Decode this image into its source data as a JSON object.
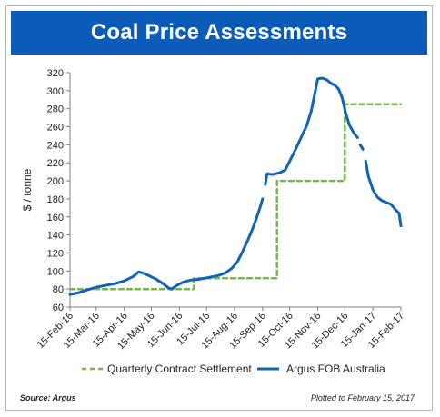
{
  "chart_data": {
    "type": "line",
    "title": "Coal Price Assessments",
    "ylabel": "$ / tonne",
    "ylim": [
      60,
      320
    ],
    "yticks": [
      60,
      80,
      100,
      120,
      140,
      160,
      180,
      200,
      220,
      240,
      260,
      280,
      300,
      320
    ],
    "xlim": [
      "2016-02-15",
      "2017-02-15"
    ],
    "xtick_labels": [
      "15-Feb-16",
      "15-Mar-16",
      "15-Apr-16",
      "15-May-16",
      "15-Jun-16",
      "15-Jul-16",
      "15-Aug-16",
      "15-Sep-16",
      "15-Oct-16",
      "15-Nov-16",
      "15-Dec-16",
      "15-Jan-17",
      "15-Feb-17"
    ],
    "xtick_dates": [
      "2016-02-15",
      "2016-03-15",
      "2016-04-15",
      "2016-05-15",
      "2016-06-15",
      "2016-07-15",
      "2016-08-15",
      "2016-09-15",
      "2016-10-15",
      "2016-11-15",
      "2016-12-15",
      "2017-01-15",
      "2017-02-15"
    ],
    "grid": false,
    "legend_position": "bottom",
    "series": [
      {
        "name": "Quarterly Contract Settlement",
        "style": "dashed",
        "color": "#77b84a",
        "points": [
          [
            "2016-02-15",
            80
          ],
          [
            "2016-07-01",
            80
          ],
          [
            "2016-07-01",
            92
          ],
          [
            "2016-10-01",
            92
          ],
          [
            "2016-10-01",
            200
          ],
          [
            "2016-12-15",
            200
          ],
          [
            "2016-12-15",
            285
          ],
          [
            "2017-02-15",
            285
          ]
        ]
      },
      {
        "name": "Argus FOB Australia",
        "style": "solid",
        "color": "#1163b6",
        "segments": [
          [
            [
              "2016-02-15",
              74
            ],
            [
              "2016-02-25",
              76
            ],
            [
              "2016-03-05",
              79
            ],
            [
              "2016-03-15",
              82
            ],
            [
              "2016-03-25",
              84
            ],
            [
              "2016-04-05",
              86
            ],
            [
              "2016-04-15",
              89
            ],
            [
              "2016-04-25",
              94
            ],
            [
              "2016-05-01",
              99
            ],
            [
              "2016-05-05",
              98
            ],
            [
              "2016-05-12",
              95
            ],
            [
              "2016-05-20",
              91
            ],
            [
              "2016-05-28",
              86
            ],
            [
              "2016-06-02",
              82
            ],
            [
              "2016-06-06",
              80
            ],
            [
              "2016-06-12",
              84
            ],
            [
              "2016-06-20",
              88
            ],
            [
              "2016-06-28",
              90
            ],
            [
              "2016-07-08",
              91
            ],
            [
              "2016-07-18",
              93
            ],
            [
              "2016-07-28",
              95
            ],
            [
              "2016-08-05",
              98
            ],
            [
              "2016-08-12",
              103
            ],
            [
              "2016-08-18",
              110
            ],
            [
              "2016-08-24",
              122
            ],
            [
              "2016-08-30",
              135
            ],
            [
              "2016-09-04",
              147
            ],
            [
              "2016-09-08",
              158
            ],
            [
              "2016-09-12",
              170
            ],
            [
              "2016-09-15",
              180
            ]
          ],
          [
            [
              "2016-09-18",
              196
            ],
            [
              "2016-09-20",
              208
            ],
            [
              "2016-09-26",
              207
            ],
            [
              "2016-10-04",
              209
            ],
            [
              "2016-10-10",
              212
            ],
            [
              "2016-10-16",
              224
            ],
            [
              "2016-10-22",
              236
            ],
            [
              "2016-10-28",
              249
            ],
            [
              "2016-11-03",
              262
            ],
            [
              "2016-11-08",
              278
            ],
            [
              "2016-11-12",
              298
            ],
            [
              "2016-11-15",
              313
            ],
            [
              "2016-11-20",
              314
            ],
            [
              "2016-11-25",
              312
            ],
            [
              "2016-11-30",
              308
            ],
            [
              "2016-12-04",
              306
            ],
            [
              "2016-12-08",
              302
            ],
            [
              "2016-12-12",
              292
            ],
            [
              "2016-12-16",
              275
            ],
            [
              "2016-12-20",
              262
            ],
            [
              "2016-12-25",
              253
            ],
            [
              "2016-12-29",
              248
            ]
          ],
          [
            [
              "2017-01-01",
              240
            ],
            [
              "2017-01-04",
              235
            ]
          ],
          [
            [
              "2017-01-07",
              222
            ],
            [
              "2017-01-10",
              205
            ],
            [
              "2017-01-15",
              190
            ],
            [
              "2017-01-20",
              182
            ],
            [
              "2017-01-25",
              178
            ],
            [
              "2017-01-30",
              176
            ],
            [
              "2017-02-04",
              174
            ],
            [
              "2017-02-09",
              168
            ],
            [
              "2017-02-13",
              164
            ],
            [
              "2017-02-15",
              150
            ]
          ]
        ]
      }
    ]
  },
  "source_note": "Source: Argus",
  "plotted_note": "Plotted to February 15, 2017",
  "colors": {
    "title_bar": "#0b5cb8",
    "contract": "#77b84a",
    "argus": "#1163b6"
  }
}
